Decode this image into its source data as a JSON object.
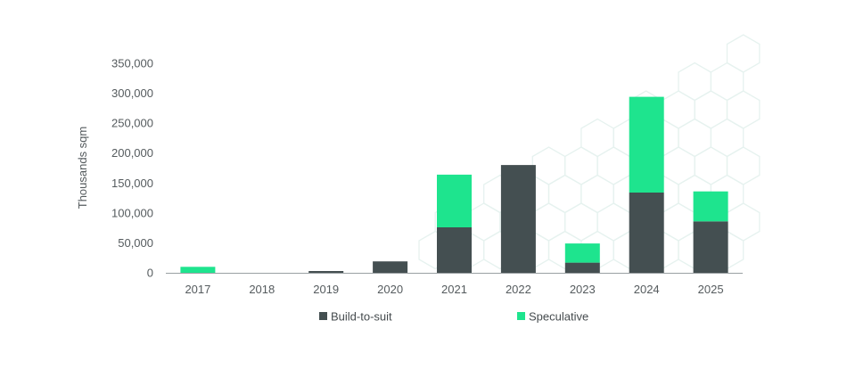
{
  "chart_data": {
    "type": "bar",
    "stacked": true,
    "categories": [
      "2017",
      "2018",
      "2019",
      "2020",
      "2021",
      "2022",
      "2023",
      "2024",
      "2025"
    ],
    "series": [
      {
        "name": "Build-to-suit",
        "color": "#444f51",
        "values": [
          0,
          0,
          3000,
          19000,
          76000,
          180000,
          17000,
          134000,
          86000
        ]
      },
      {
        "name": "Speculative",
        "color": "#1ee48e",
        "values": [
          10000,
          0,
          0,
          0,
          88000,
          0,
          32000,
          160000,
          50000
        ]
      }
    ],
    "ylabel": "Thousands sqm",
    "xlabel": "",
    "ylim": [
      0,
      350000
    ],
    "yticks": [
      0,
      50000,
      100000,
      150000,
      200000,
      250000,
      300000,
      350000
    ],
    "ytick_labels": [
      "0",
      "50,000",
      "100,000",
      "150,000",
      "200,000",
      "250,000",
      "300,000",
      "350,000"
    ],
    "grid": false,
    "legend": "bottom-center"
  }
}
